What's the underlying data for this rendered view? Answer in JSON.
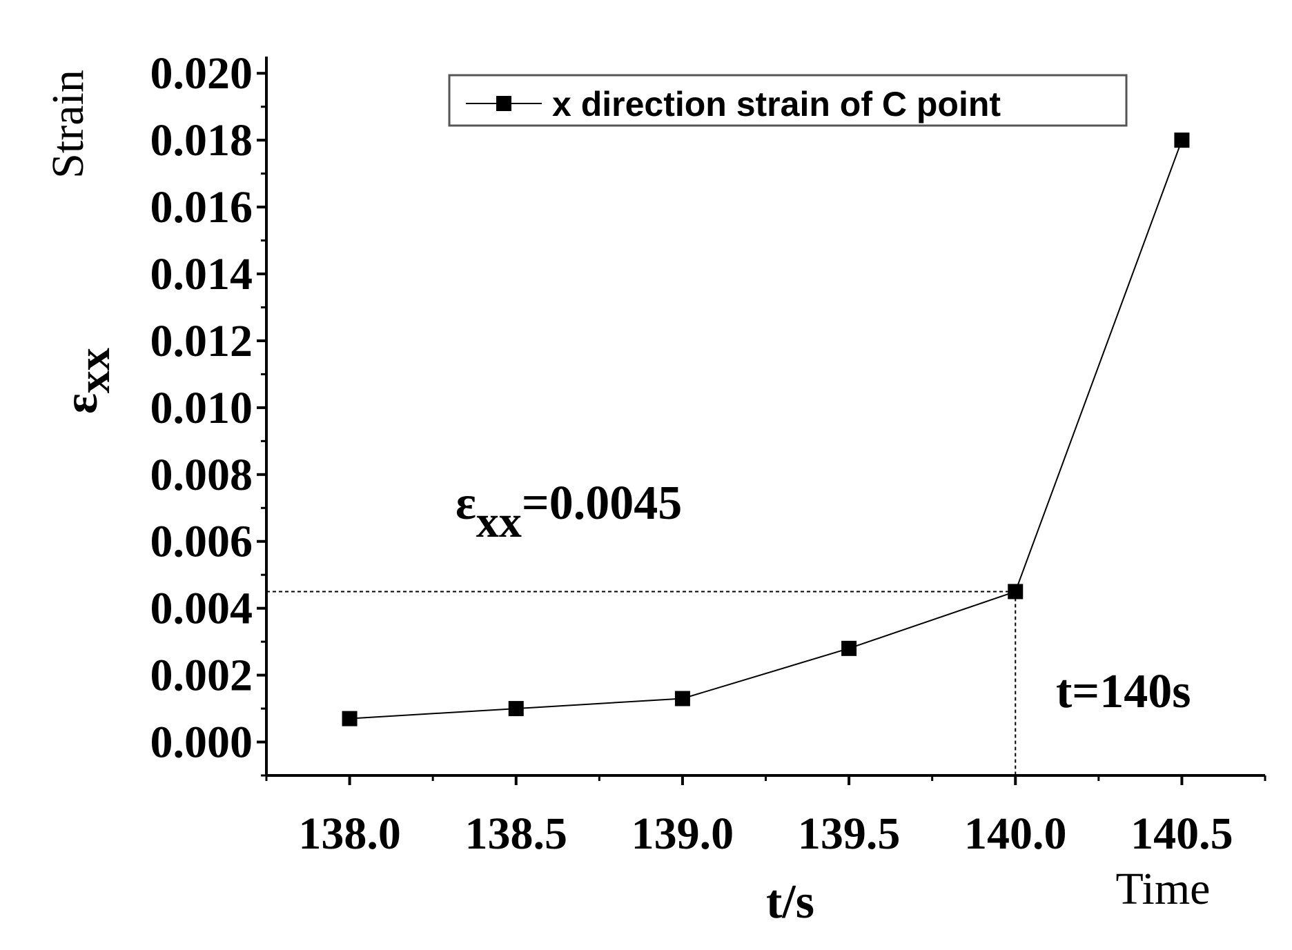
{
  "chart_data": {
    "type": "line",
    "x": [
      138.0,
      138.5,
      139.0,
      139.5,
      140.0,
      140.5
    ],
    "series": [
      {
        "name": "x direction strain of C point",
        "values": [
          0.0007,
          0.001,
          0.0013,
          0.0028,
          0.0045,
          0.018
        ]
      }
    ],
    "xlabel": "t/s",
    "xlabel_extra": "Time",
    "ylabel_main": "ε",
    "ylabel_sub": "xx",
    "ylabel_extra": "Strain",
    "xlim": [
      137.75,
      140.75
    ],
    "ylim": [
      -0.001,
      0.0205
    ],
    "x_ticks": [
      "138.0",
      "138.5",
      "139.0",
      "139.5",
      "140.0",
      "140.5"
    ],
    "x_tick_values": [
      138.0,
      138.5,
      139.0,
      139.5,
      140.0,
      140.5
    ],
    "y_ticks": [
      "0.000",
      "0.002",
      "0.004",
      "0.006",
      "0.008",
      "0.010",
      "0.012",
      "0.014",
      "0.016",
      "0.018",
      "0.020"
    ],
    "y_tick_values": [
      0.0,
      0.002,
      0.004,
      0.006,
      0.008,
      0.01,
      0.012,
      0.014,
      0.016,
      0.018,
      0.02
    ],
    "grid": false,
    "legend_position": "top",
    "annotations": [
      {
        "main": "ε",
        "sub": "xx",
        "rest": "=0.0045"
      },
      {
        "text": "t=140s"
      }
    ],
    "reference_point": {
      "x": 140.0,
      "y": 0.0045
    },
    "colors": {
      "line": "#000000",
      "marker": "#000000",
      "axis": "#000000"
    }
  }
}
